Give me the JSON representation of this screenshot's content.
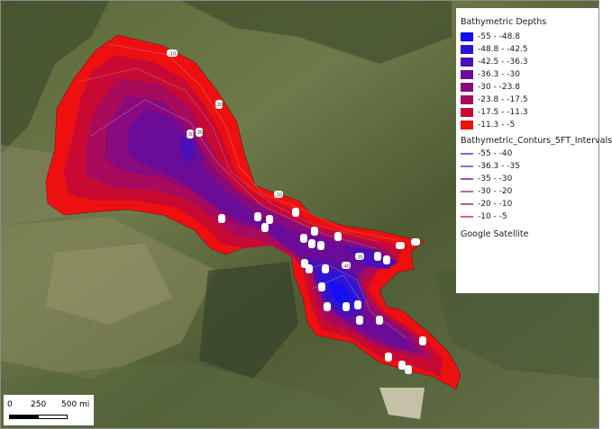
{
  "legend": {
    "depth_title": "Bathymetric Depths",
    "depth_classes": [
      {
        "label": "-55 - -48.8",
        "color": "#1010f0"
      },
      {
        "label": "-48.8 - -42.5",
        "color": "#2c14d6"
      },
      {
        "label": "-42.5 - -36.3",
        "color": "#4a10b8"
      },
      {
        "label": "-36.3 - -30",
        "color": "#6a0c98"
      },
      {
        "label": "-30 - -23.8",
        "color": "#880a7c"
      },
      {
        "label": "-23.8 - -17.5",
        "color": "#a80a5c"
      },
      {
        "label": "-17.5 - -11.3",
        "color": "#c80a32"
      },
      {
        "label": "-11.3 - -5",
        "color": "#ee1010"
      }
    ],
    "contour_title": "Bathymetric_Conturs_5FT_Intervals",
    "contour_classes": [
      {
        "label": "-55 - -40",
        "color": "#7070ee"
      },
      {
        "label": "-36.3 - -35",
        "color": "#8a6cd8"
      },
      {
        "label": "-35 - -30",
        "color": "#8a5cc0"
      },
      {
        "label": "-30 - -20",
        "color": "#b06aa8"
      },
      {
        "label": "-20 - -10",
        "color": "#c85a78"
      },
      {
        "label": "-10 - -5",
        "color": "#e06060"
      }
    ],
    "basemap_label": "Google Satellite"
  },
  "scalebar": {
    "tick_0": "0",
    "tick_1": "250",
    "tick_2": "500 mi"
  },
  "contour_labels": [
    "-10",
    "-20",
    "-30",
    "-35",
    "-40"
  ]
}
